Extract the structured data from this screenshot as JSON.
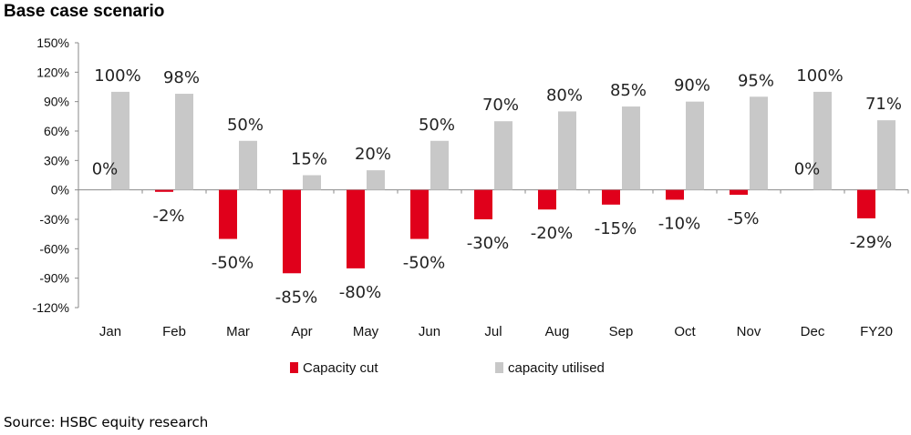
{
  "title": "Base case scenario",
  "source": "Source: HSBC equity research",
  "chart_data": {
    "type": "bar",
    "title": "Base case scenario",
    "categories": [
      "Jan",
      "Feb",
      "Mar",
      "Apr",
      "May",
      "Jun",
      "Jul",
      "Aug",
      "Sep",
      "Oct",
      "Nov",
      "Dec",
      "FY20"
    ],
    "series": [
      {
        "name": "Capacity cut",
        "values": [
          0,
          -2,
          -50,
          -85,
          -80,
          -50,
          -30,
          -20,
          -15,
          -10,
          -5,
          0,
          -29
        ],
        "color": "#e0001b"
      },
      {
        "name": "capacity utilised",
        "values": [
          100,
          98,
          50,
          15,
          20,
          50,
          70,
          80,
          85,
          90,
          95,
          100,
          71
        ],
        "color": "#c8c8c8"
      }
    ],
    "ylim": [
      -120,
      150
    ],
    "yticks": [
      -120,
      -90,
      -60,
      -30,
      0,
      30,
      60,
      90,
      120,
      150
    ],
    "ytick_labels": [
      "-120%",
      "-90%",
      "-60%",
      "-30%",
      "0%",
      "30%",
      "60%",
      "90%",
      "120%",
      "150%"
    ],
    "data_labels": {
      "Capacity cut": [
        "0%",
        "-2%",
        "-50%",
        "-85%",
        "-80%",
        "-50%",
        "-30%",
        "-20%",
        "-15%",
        "-10%",
        "-5%",
        "0%",
        "-29%"
      ],
      "capacity utilised": [
        "100%",
        "98%",
        "50%",
        "15%",
        "20%",
        "50%",
        "70%",
        "80%",
        "85%",
        "90%",
        "95%",
        "100%",
        "71%"
      ]
    },
    "grid": false,
    "legend": "bottom"
  }
}
